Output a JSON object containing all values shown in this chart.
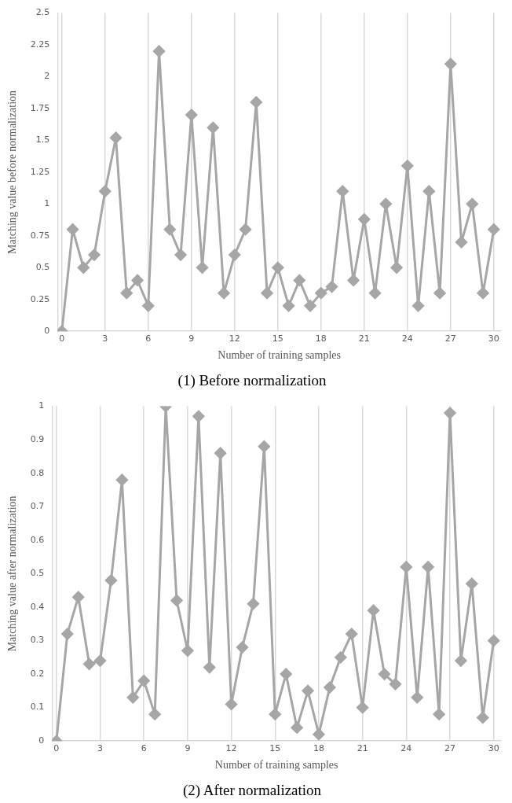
{
  "chart_data": [
    {
      "type": "line",
      "title": "(1) Before normalization",
      "xlabel": "Number of training samples",
      "ylabel": "Matching value before normalization",
      "x": [
        0,
        0.75,
        1.5,
        2.25,
        3,
        3.75,
        4.5,
        5.25,
        6,
        6.75,
        7.5,
        8.25,
        9,
        9.75,
        10.5,
        11.25,
        12,
        12.75,
        13.5,
        14.25,
        15,
        15.75,
        16.5,
        17.25,
        18,
        18.75,
        19.5,
        20.25,
        21,
        21.75,
        22.5,
        23.25,
        24,
        24.75,
        25.5,
        26.25,
        27,
        27.75,
        28.5,
        29.25,
        30
      ],
      "series": [
        {
          "color": "#a6a6a6",
          "values": [
            0,
            0.8,
            0.5,
            0.6,
            1.1,
            1.52,
            0.3,
            0.4,
            0.2,
            2.2,
            0.8,
            0.6,
            1.7,
            0.5,
            1.6,
            0.3,
            0.6,
            0.8,
            1.8,
            0.3,
            0.5,
            0.2,
            0.4,
            0.2,
            0.3,
            0.35,
            1.1,
            0.4,
            0.88,
            0.3,
            1,
            0.5,
            1.3,
            0.2,
            1.1,
            0.3,
            2.1,
            0.7,
            1,
            0.3,
            0.8
          ]
        }
      ],
      "xlim": [
        -0.3,
        30.5
      ],
      "xticks": [
        0,
        3,
        6,
        9,
        12,
        15,
        18,
        21,
        24,
        27,
        30
      ],
      "ylim": [
        0,
        2.5
      ],
      "yticks": [
        0,
        0.25,
        0.5,
        0.75,
        1,
        1.25,
        1.5,
        1.75,
        2,
        2.25,
        2.5
      ],
      "grid": "x",
      "marker": "diamond"
    },
    {
      "type": "line",
      "title": "(2) After normalization",
      "xlabel": "Number of training samples",
      "ylabel": "Matching value after normalization",
      "x": [
        0,
        0.75,
        1.5,
        2.25,
        3,
        3.75,
        4.5,
        5.25,
        6,
        6.75,
        7.5,
        8.25,
        9,
        9.75,
        10.5,
        11.25,
        12,
        12.75,
        13.5,
        14.25,
        15,
        15.75,
        16.5,
        17.25,
        18,
        18.75,
        19.5,
        20.25,
        21,
        21.75,
        22.5,
        23.25,
        24,
        24.75,
        25.5,
        26.25,
        27,
        27.75,
        28.5,
        29.25,
        30
      ],
      "series": [
        {
          "color": "#a6a6a6",
          "values": [
            0,
            0.32,
            0.43,
            0.23,
            0.24,
            0.48,
            0.78,
            0.13,
            0.18,
            0.08,
            1,
            0.42,
            0.27,
            0.97,
            0.22,
            0.86,
            0.11,
            0.28,
            0.41,
            0.88,
            0.08,
            0.2,
            0.04,
            0.15,
            0.02,
            0.16,
            0.25,
            0.32,
            0.1,
            0.39,
            0.2,
            0.17,
            0.52,
            0.13,
            0.52,
            0.08,
            0.98,
            0.24,
            0.47,
            0.07,
            0.3
          ]
        }
      ],
      "xlim": [
        -0.3,
        30.5
      ],
      "xticks": [
        0,
        3,
        6,
        9,
        12,
        15,
        18,
        21,
        24,
        27,
        30
      ],
      "ylim": [
        0,
        1
      ],
      "yticks": [
        0,
        0.1,
        0.2,
        0.3,
        0.4,
        0.5,
        0.6,
        0.7,
        0.8,
        0.9,
        1
      ],
      "grid": "x",
      "marker": "diamond"
    }
  ]
}
